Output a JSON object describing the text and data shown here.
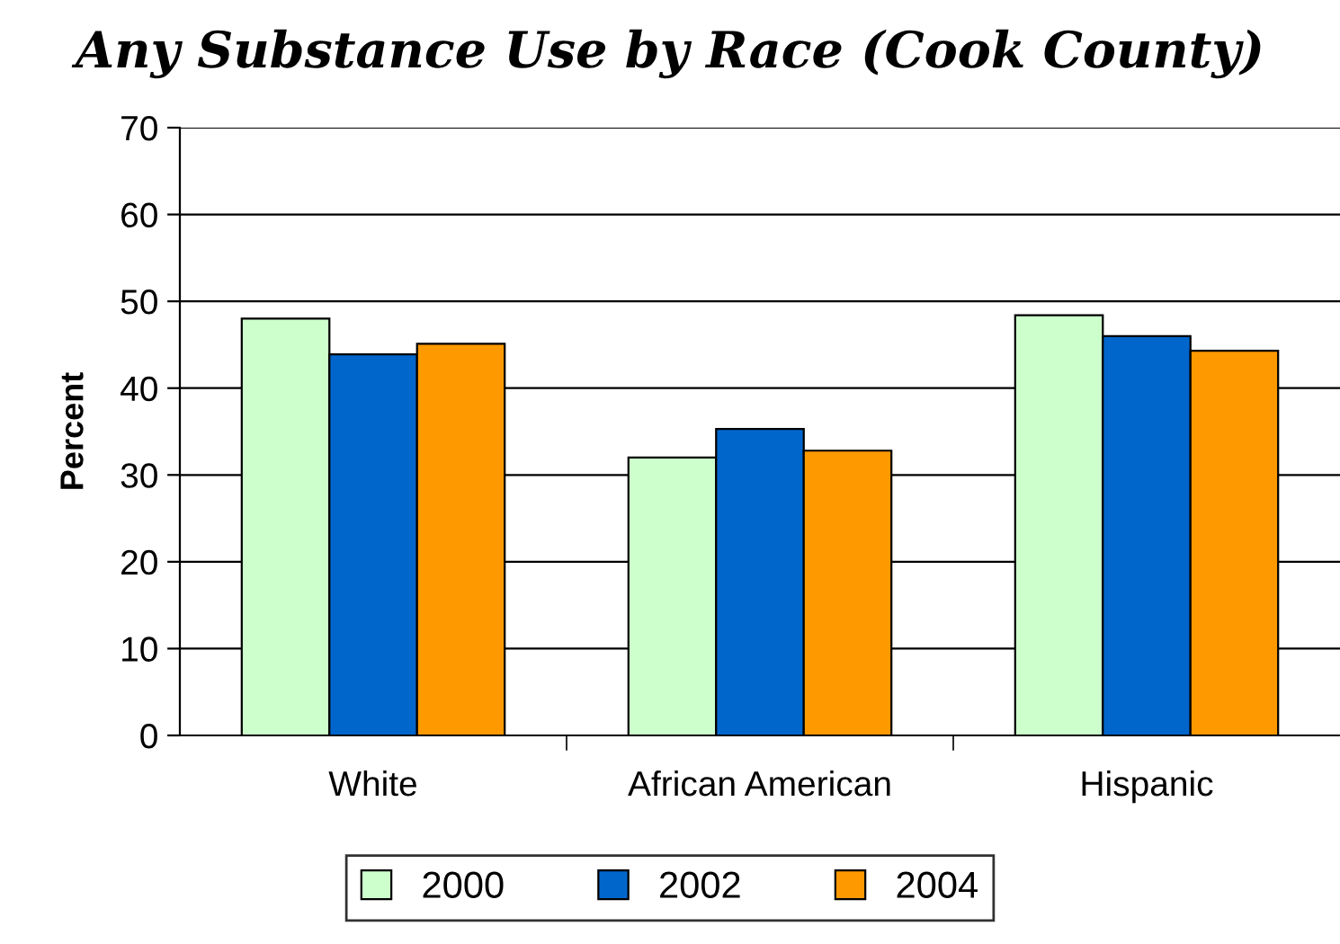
{
  "chart_data": {
    "type": "bar",
    "title": "Any Substance Use by Race (Cook County)",
    "ylabel": "Percent",
    "categories": [
      "White",
      "African American",
      "Hispanic"
    ],
    "series": [
      {
        "name": "2000",
        "color": "#ccffcc",
        "values": [
          48.0,
          32.0,
          48.4
        ]
      },
      {
        "name": "2002",
        "color": "#0066cc",
        "values": [
          43.9,
          35.3,
          46.0
        ]
      },
      {
        "name": "2004",
        "color": "#ff9900",
        "values": [
          45.1,
          32.8,
          44.3
        ]
      }
    ],
    "ylim": [
      0,
      70
    ],
    "yticks": [
      0,
      10,
      20,
      30,
      40,
      50,
      60,
      70
    ],
    "grid": "y",
    "legend": "bottom"
  }
}
